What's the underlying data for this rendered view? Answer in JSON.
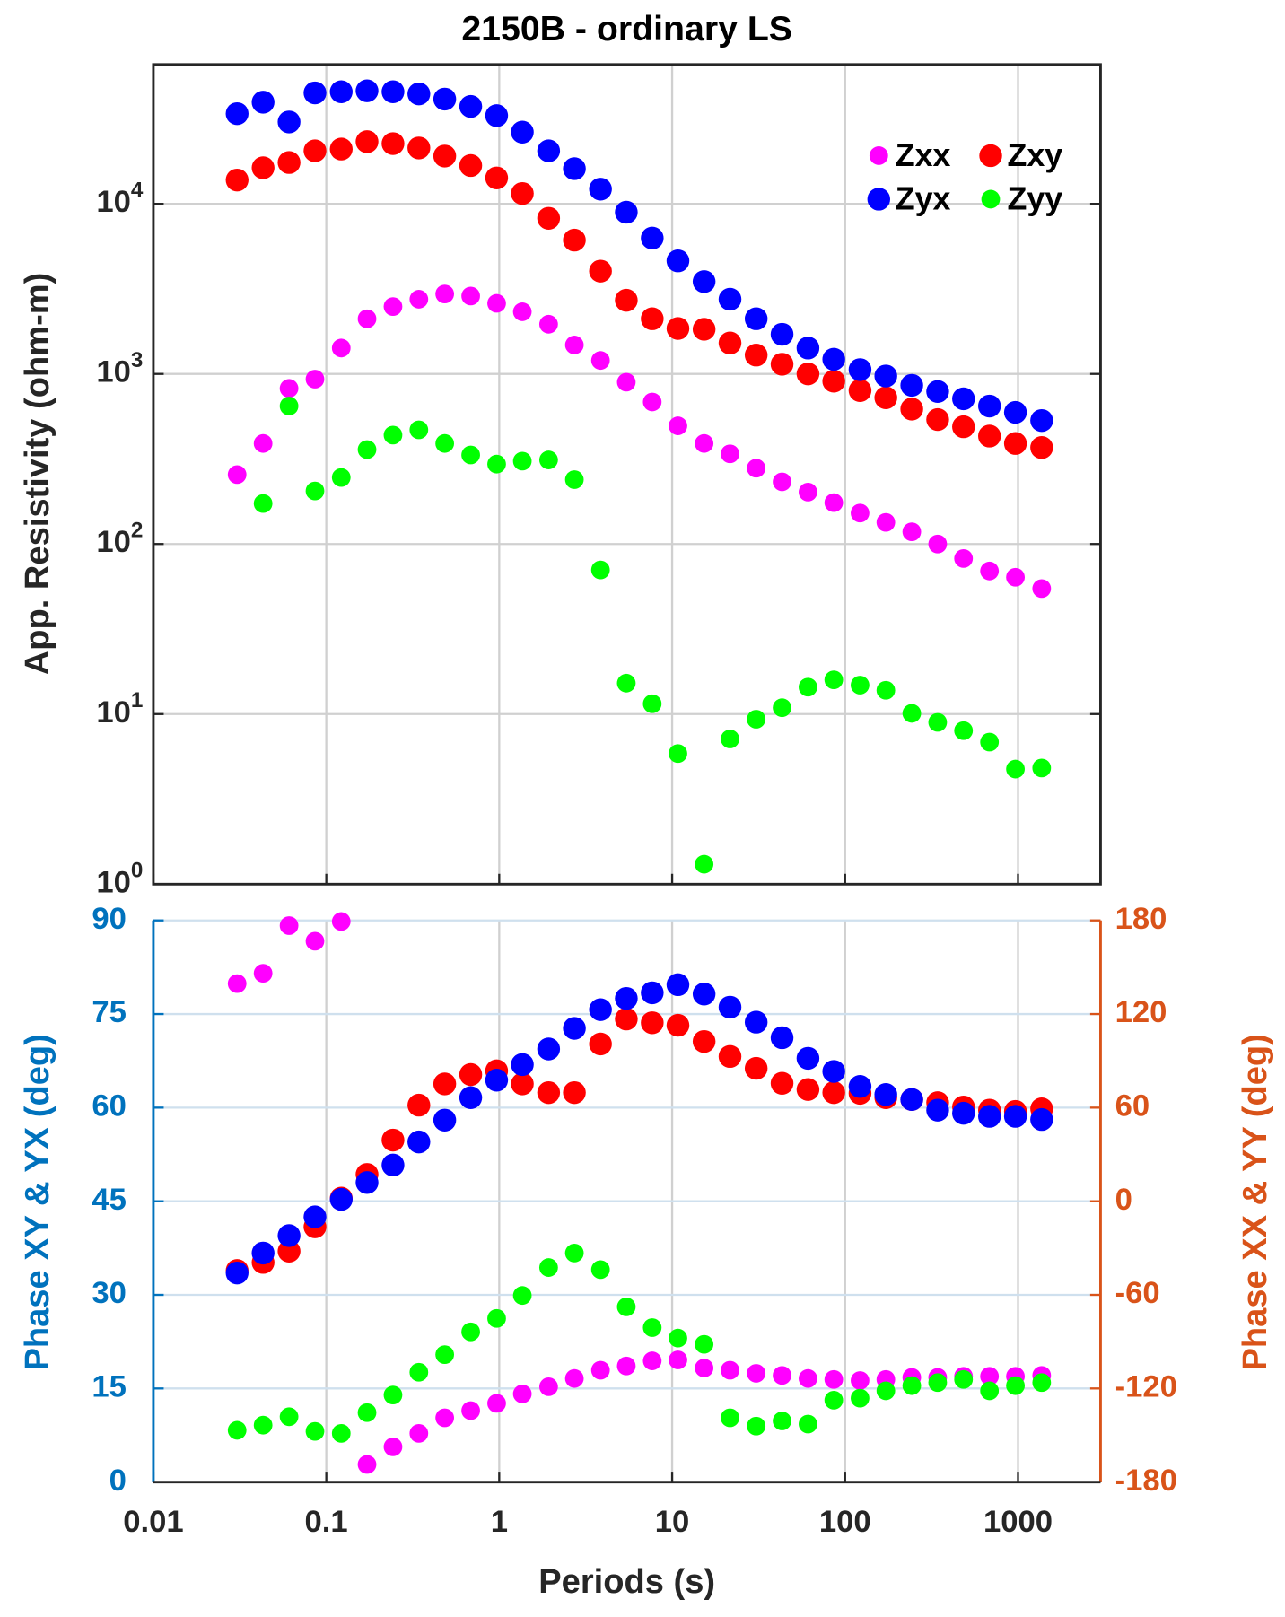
{
  "chart_data": [
    {
      "type": "scatter",
      "title": "2150B - ordinary LS",
      "ylabel": "App. Resistivity (ohm-m)",
      "x": [
        0.0305,
        0.0431,
        0.0609,
        0.086,
        0.122,
        0.172,
        0.243,
        0.343,
        0.484,
        0.684,
        0.966,
        1.36,
        1.93,
        2.72,
        3.85,
        5.43,
        7.67,
        10.8,
        15.3,
        21.6,
        30.6,
        43.2,
        61,
        86,
        122,
        172,
        243,
        343,
        484,
        684,
        966,
        1370
      ],
      "log_x": true,
      "log_y": true,
      "grid": true,
      "legend": "upper right",
      "ylim": [
        1,
        66000
      ],
      "yticks": [
        {
          "value": 1,
          "label": "10^0"
        },
        {
          "value": 10,
          "label": "10^1"
        },
        {
          "value": 100,
          "label": "10^2"
        },
        {
          "value": 1000,
          "label": "10^3"
        },
        {
          "value": 10000,
          "label": "10^4"
        }
      ],
      "series": [
        {
          "name": "Zxx",
          "color": "#ff00ff",
          "values": [
            256,
            390,
            822,
            932,
            1420,
            2110,
            2490,
            2750,
            2950,
            2870,
            2600,
            2320,
            1960,
            1480,
            1200,
            894,
            684,
            495,
            390,
            339,
            279,
            232,
            202,
            175,
            152,
            134,
            118,
            100,
            82.2,
            69.4,
            63.8,
            54.7
          ]
        },
        {
          "name": "Zxy",
          "color": "#ff0000",
          "values": [
            13800,
            16300,
            17500,
            20500,
            21000,
            23200,
            22600,
            21300,
            19100,
            16800,
            14200,
            11500,
            8220,
            6120,
            4020,
            2710,
            2110,
            1850,
            1830,
            1520,
            1290,
            1140,
            1000,
            906,
            798,
            724,
            621,
            539,
            489,
            431,
            390,
            369
          ]
        },
        {
          "name": "Zyx",
          "color": "#0000ff",
          "values": [
            33900,
            39600,
            30300,
            44900,
            45600,
            46200,
            45600,
            44300,
            41300,
            37400,
            33000,
            26400,
            20500,
            16100,
            12200,
            8930,
            6290,
            4620,
            3490,
            2750,
            2110,
            1710,
            1420,
            1220,
            1060,
            972,
            857,
            788,
            714,
            647,
            594,
            532
          ]
        },
        {
          "name": "Zyy",
          "color": "#00ff00",
          "values": [
            null,
            173,
            647,
            205,
            246,
            359,
            437,
            469,
            390,
            334,
            295,
            307,
            312,
            239,
            70.4,
            15.2,
            11.5,
            5.86,
            1.31,
            7.14,
            9.33,
            10.9,
            14.4,
            15.9,
            14.8,
            13.8,
            10.1,
            8.94,
            7.99,
            6.84,
            4.75,
            4.82
          ]
        }
      ]
    },
    {
      "type": "scatter",
      "xlabel": "Periods (s)",
      "ylabel": "Phase XY & YX (deg)",
      "y2label": "Phase XX & YY (deg)",
      "xlim": [
        0.01,
        3000
      ],
      "xticks": [
        0.01,
        0.1,
        1,
        10,
        100,
        1000
      ],
      "ylim": [
        0,
        90
      ],
      "yticks": [
        0,
        15,
        30,
        45,
        60,
        75,
        90
      ],
      "y2lim": [
        -180,
        180
      ],
      "y2ticks": [
        -180,
        -120,
        -60,
        0,
        60,
        120,
        180
      ],
      "grid": true,
      "y_color": "#0072bd",
      "y2_color": "#d95319",
      "series": [
        {
          "color": "#ff00ff",
          "axis": "y2",
          "values": [
            139.5,
            146.1,
            176.7,
            166.7,
            179.3,
            -168.7,
            -157.4,
            -148.8,
            -138.8,
            -134.2,
            -129.5,
            -123.5,
            -118.9,
            -113.6,
            -108.3,
            -105.6,
            -102.3,
            -101.7,
            -106.9,
            -108.3,
            -110.3,
            -111.6,
            -113.6,
            -114.2,
            -114.9,
            -114.2,
            -112.9,
            -112.9,
            -112.2,
            -112.2,
            -112.2,
            -111.6
          ]
        },
        {
          "color": "#ff0000",
          "values": [
            33.9,
            35.2,
            37.0,
            40.9,
            45.5,
            49.3,
            54.8,
            60.4,
            63.8,
            65.3,
            65.9,
            63.8,
            62.4,
            62.4,
            70.2,
            74.2,
            73.6,
            73.2,
            70.6,
            68.2,
            66.3,
            63.9,
            62.9,
            62.4,
            62.3,
            61.6,
            61.3,
            60.8,
            60.1,
            59.6,
            59.4,
            59.8
          ]
        },
        {
          "color": "#0000ff",
          "values": [
            33.5,
            36.7,
            39.5,
            42.5,
            45.3,
            48.0,
            50.8,
            54.5,
            58.0,
            61.6,
            64.4,
            66.9,
            69.4,
            72.7,
            75.7,
            77.5,
            78.4,
            79.7,
            78.2,
            76.1,
            73.7,
            71.2,
            67.9,
            65.8,
            63.4,
            62.1,
            61.3,
            59.6,
            59.1,
            58.6,
            58.6,
            58.1
          ]
        },
        {
          "color": "#00ff00",
          "axis": "y2",
          "values": [
            -146.8,
            -143.5,
            -138.1,
            -147.5,
            -148.8,
            -135.5,
            -124.2,
            -109.6,
            -98.3,
            -83.7,
            -75.1,
            -60.4,
            -42.5,
            -33.2,
            -43.8,
            -67.7,
            -81.0,
            -87.7,
            -91.7,
            -138.8,
            -144.1,
            -140.8,
            -142.8,
            -127.5,
            -126.2,
            -121.5,
            -118.2,
            -116.2,
            -114.2,
            -121.5,
            -118.2,
            -116.2
          ]
        }
      ]
    }
  ]
}
